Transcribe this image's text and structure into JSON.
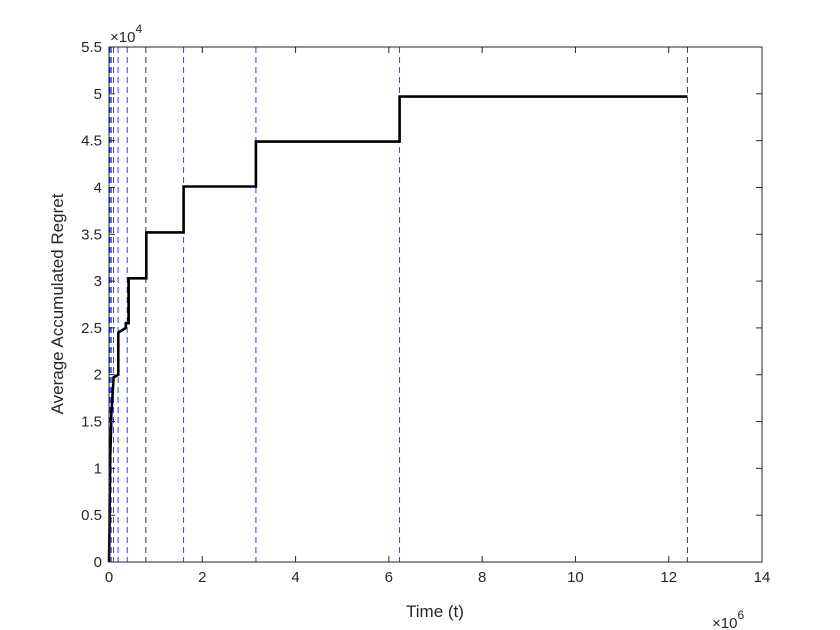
{
  "chart_data": {
    "type": "line",
    "title": "",
    "xlabel": "Time (t)",
    "ylabel": "Average Accumulated Regret",
    "x_multiplier_label": "×10",
    "x_multiplier_exponent": "6",
    "y_multiplier_label": "×10",
    "y_multiplier_exponent": "4",
    "xlim": [
      0,
      14
    ],
    "ylim": [
      0,
      5.5
    ],
    "x_ticks": [
      0,
      2,
      4,
      6,
      8,
      10,
      12,
      14
    ],
    "x_tick_labels": [
      "0",
      "2",
      "4",
      "6",
      "8",
      "10",
      "12",
      "14"
    ],
    "y_ticks": [
      0,
      0.5,
      1,
      1.5,
      2,
      2.5,
      3,
      3.5,
      4,
      4.5,
      5,
      5.5
    ],
    "y_tick_labels": [
      "0",
      "0.5",
      "1",
      "1.5",
      "2",
      "2.5",
      "3",
      "3.5",
      "4",
      "4.5",
      "5",
      "5.5"
    ],
    "grid": false,
    "legend": "none",
    "series": [
      {
        "color": "#000000",
        "style": "solid",
        "x": [
          0,
          0.012,
          0.012,
          0.024,
          0.024,
          0.048,
          0.048,
          0.096,
          0.096,
          0.195,
          0.195,
          0.39,
          0.39,
          0.78,
          0.78,
          1.56,
          1.56,
          3.12,
          3.12,
          6.23,
          6.23,
          12.4
        ],
        "y": [
          0,
          0.45,
          0.6,
          1.0,
          1.1,
          1.45,
          1.55,
          1.95,
          1.97,
          2.45,
          2.5,
          2.53,
          2.6,
          3.03,
          3.1,
          3.52,
          3.55,
          4.02,
          4.05,
          4.49,
          4.52,
          4.97
        ]
      }
    ],
    "step_series_points": [
      [
        0,
        0
      ],
      [
        0.012,
        0.45
      ],
      [
        0.012,
        0.6
      ],
      [
        0.024,
        1.0
      ],
      [
        0.024,
        1.1
      ],
      [
        0.048,
        1.45
      ],
      [
        0.048,
        1.55
      ],
      [
        0.096,
        1.95
      ],
      [
        0.096,
        1.97
      ],
      [
        0.2,
        2.0
      ],
      [
        0.2,
        2.45
      ],
      [
        0.36,
        2.5
      ],
      [
        0.36,
        2.55
      ],
      [
        0.42,
        2.55
      ],
      [
        0.42,
        3.03
      ],
      [
        0.8,
        3.03
      ],
      [
        0.8,
        3.52
      ],
      [
        1.6,
        3.52
      ],
      [
        1.6,
        4.01
      ],
      [
        3.15,
        4.01
      ],
      [
        3.15,
        4.49
      ],
      [
        6.23,
        4.49
      ],
      [
        6.23,
        4.97
      ],
      [
        12.4,
        4.97
      ]
    ],
    "reference_lines": {
      "style": "dashed",
      "x": [
        0.012,
        0.024,
        0.048,
        0.096,
        0.195,
        0.39,
        0.79,
        1.6,
        3.15,
        6.23,
        12.4
      ],
      "color_map": [
        "#0000ff",
        "#0000ff",
        "#0000ff",
        "#0000ff",
        "#0000ff",
        "#0000ff",
        "#000000",
        "#0000ff",
        "#0000ff",
        "#0000ff",
        "#000000"
      ]
    },
    "colors": {
      "line": "#000000",
      "reference_blue": "#0000ff",
      "reference_black": "#000000",
      "axes": "#262626",
      "background": "#ffffff"
    }
  }
}
